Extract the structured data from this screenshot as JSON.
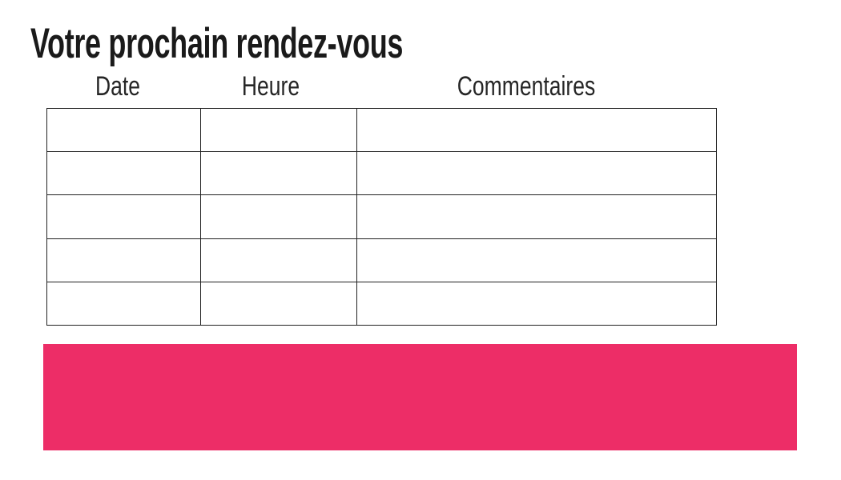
{
  "page": {
    "title": "Votre prochain rendez-vous",
    "background_color": "#ffffff",
    "title_color": "#1a1a1a"
  },
  "appointments_table": {
    "border_color": "#222222",
    "columns": [
      {
        "label": "Date"
      },
      {
        "label": "Heure"
      },
      {
        "label": "Commentaires"
      }
    ],
    "rows": [
      [
        "",
        "",
        ""
      ],
      [
        "",
        "",
        ""
      ],
      [
        "",
        "",
        ""
      ],
      [
        "",
        "",
        ""
      ],
      [
        "",
        "",
        ""
      ]
    ]
  },
  "banner": {
    "color": "#ED2D67"
  }
}
